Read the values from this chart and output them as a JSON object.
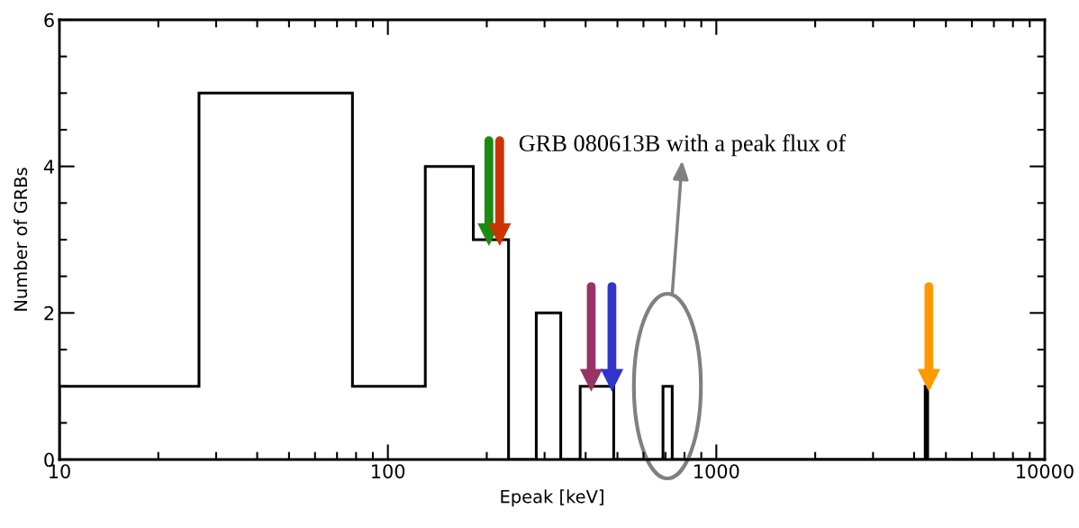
{
  "chart_data": {
    "type": "histogram",
    "xlabel": "Epeak [keV]",
    "ylabel": "Number of GRBs",
    "log": "x",
    "bins": [
      10,
      26.6,
      78,
      130,
      182,
      233,
      283,
      336,
      385,
      487,
      688,
      734,
      4325,
      4400,
      10000
    ],
    "values": [
      1,
      5,
      1,
      4,
      3,
      0,
      2,
      0,
      1,
      0,
      1,
      0,
      1,
      0
    ],
    "color": "#000000",
    "series": [
      {
        "type": "scatter",
        "marker": "triangle",
        "x": [
          203,
          219,
          416,
          481,
          4437
        ],
        "values": [
          3.07,
          3.07,
          1.08,
          1.08,
          1.08
        ],
        "colors": [
          "#1a8c0f",
          "#cc3300",
          "#993366",
          "#3333cc",
          "#ff9900"
        ]
      }
    ],
    "annotations": [
      "GRB 080613B with a peak flux of"
    ],
    "xlim": [
      10,
      10000
    ],
    "xticks": [
      10,
      100,
      1000,
      10000
    ],
    "ylim": [
      0,
      6
    ],
    "yticks": [
      0,
      2,
      4,
      6
    ],
    "grid": false,
    "legend": false
  }
}
